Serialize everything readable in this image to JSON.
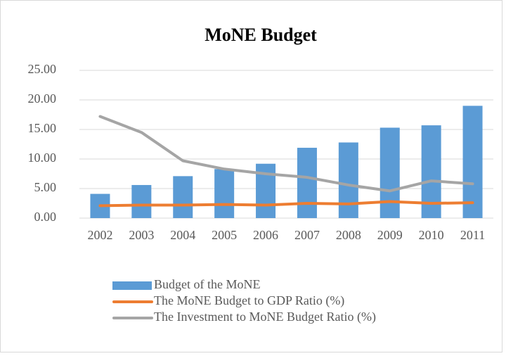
{
  "chart_data": {
    "type": "combo",
    "title": "MoNE Budget",
    "categories": [
      "2002",
      "2003",
      "2004",
      "2005",
      "2006",
      "2007",
      "2008",
      "2009",
      "2010",
      "2011"
    ],
    "series": [
      {
        "name": "Budget of the MoNE",
        "type": "bar",
        "color": "#5b9bd5",
        "values": [
          4.1,
          5.6,
          7.1,
          8.3,
          9.2,
          11.9,
          12.8,
          15.3,
          15.7,
          19.0
        ]
      },
      {
        "name": "The MoNE Budget to GDP Ratio (%)",
        "type": "line",
        "color": "#ed7d31",
        "values": [
          2.1,
          2.2,
          2.2,
          2.3,
          2.2,
          2.5,
          2.4,
          2.8,
          2.5,
          2.6
        ]
      },
      {
        "name": "The Investment to MoNE Budget Ratio (%)",
        "type": "line",
        "color": "#a5a5a5",
        "values": [
          17.2,
          14.5,
          9.7,
          8.3,
          7.5,
          6.9,
          5.6,
          4.6,
          6.3,
          5.8
        ]
      }
    ],
    "ylim": [
      0,
      25
    ],
    "yticks": [
      {
        "value": 0,
        "label": "0.00"
      },
      {
        "value": 5,
        "label": "5.00"
      },
      {
        "value": 10,
        "label": "10.00"
      },
      {
        "value": 15,
        "label": "15.00"
      },
      {
        "value": 20,
        "label": "20.00"
      },
      {
        "value": 25,
        "label": "25.00"
      }
    ],
    "grid": true,
    "legend": "bottom"
  }
}
